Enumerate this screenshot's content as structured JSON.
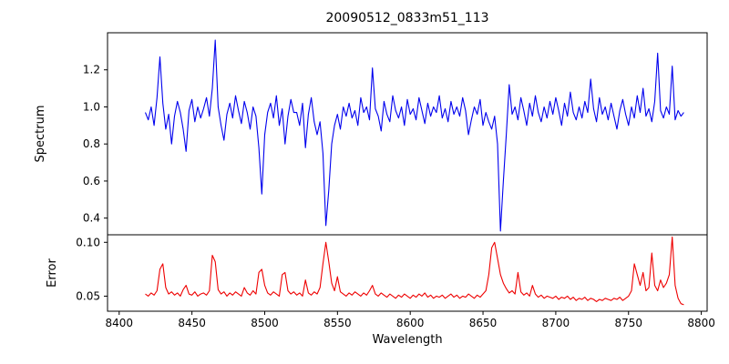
{
  "chart_data": {
    "type": "line",
    "title": "20090512_0833m51_113",
    "xlabel": "Wavelength",
    "xlim": [
      8392,
      8804
    ],
    "xticks": [
      8400,
      8450,
      8500,
      8550,
      8600,
      8650,
      8700,
      8750,
      8800
    ],
    "xtick_labels": [
      "8400",
      "8450",
      "8500",
      "8550",
      "8600",
      "8650",
      "8700",
      "8750",
      "8800"
    ],
    "x_start": 8418,
    "x_step": 2,
    "legend": "none",
    "grid": false,
    "panels": [
      {
        "name": "spectrum",
        "ylabel": "Spectrum",
        "ylim": [
          0.31,
          1.4
        ],
        "yticks": [
          0.4,
          0.6,
          0.8,
          1.0,
          1.2
        ],
        "ytick_labels": [
          "0.4",
          "0.6",
          "0.8",
          "1.0",
          "1.2"
        ],
        "color": "#0000ee",
        "values": [
          0.97,
          0.93,
          1.0,
          0.9,
          1.05,
          1.27,
          1.02,
          0.88,
          0.96,
          0.8,
          0.95,
          1.03,
          0.97,
          0.88,
          0.76,
          0.98,
          1.04,
          0.92,
          1.0,
          0.94,
          0.99,
          1.05,
          0.95,
          1.1,
          1.36,
          1.0,
          0.9,
          0.82,
          0.96,
          1.02,
          0.94,
          1.06,
          0.98,
          0.91,
          1.03,
          0.97,
          0.88,
          1.0,
          0.95,
          0.78,
          0.53,
          0.85,
          0.97,
          1.02,
          0.94,
          1.06,
          0.9,
          0.99,
          0.8,
          0.95,
          1.04,
          0.97,
          0.97,
          0.9,
          1.02,
          0.78,
          0.96,
          1.05,
          0.92,
          0.85,
          0.92,
          0.75,
          0.36,
          0.55,
          0.8,
          0.9,
          0.96,
          0.88,
          1.0,
          0.95,
          1.02,
          0.94,
          0.98,
          0.9,
          1.05,
          0.97,
          1.0,
          0.93,
          1.21,
          0.99,
          0.95,
          0.87,
          1.03,
          0.96,
          0.92,
          1.06,
          0.98,
          0.94,
          1.0,
          0.9,
          1.04,
          0.96,
          0.99,
          0.93,
          1.05,
          0.98,
          0.91,
          1.02,
          0.95,
          1.0,
          0.97,
          1.06,
          0.94,
          0.99,
          0.92,
          1.03,
          0.96,
          1.0,
          0.95,
          1.05,
          0.98,
          0.85,
          0.93,
          1.0,
          0.96,
          1.04,
          0.9,
          0.97,
          0.92,
          0.88,
          0.95,
          0.8,
          0.33,
          0.6,
          0.85,
          1.12,
          0.96,
          1.0,
          0.93,
          1.05,
          0.98,
          0.9,
          1.02,
          0.95,
          1.06,
          0.97,
          0.92,
          1.0,
          0.94,
          1.03,
          0.96,
          1.05,
          0.98,
          0.9,
          1.02,
          0.95,
          1.08,
          0.97,
          0.93,
          1.0,
          0.94,
          1.03,
          0.97,
          1.15,
          0.99,
          0.92,
          1.05,
          0.96,
          1.0,
          0.93,
          1.02,
          0.95,
          0.88,
          0.98,
          1.04,
          0.96,
          0.9,
          1.0,
          0.94,
          1.06,
          0.97,
          1.1,
          0.95,
          0.99,
          0.92,
          1.03,
          1.29,
          0.98,
          0.94,
          1.0,
          0.96,
          1.22,
          0.93,
          0.98,
          0.95,
          0.97
        ]
      },
      {
        "name": "error",
        "ylabel": "Error",
        "ylim": [
          0.036,
          0.107
        ],
        "yticks": [
          0.05,
          0.1
        ],
        "ytick_labels": [
          "0.05",
          "0.10"
        ],
        "color": "#ee0000",
        "values": [
          0.052,
          0.05,
          0.053,
          0.051,
          0.055,
          0.075,
          0.08,
          0.058,
          0.052,
          0.054,
          0.051,
          0.053,
          0.05,
          0.056,
          0.06,
          0.052,
          0.051,
          0.054,
          0.05,
          0.052,
          0.053,
          0.051,
          0.055,
          0.088,
          0.082,
          0.056,
          0.052,
          0.054,
          0.05,
          0.053,
          0.051,
          0.054,
          0.052,
          0.05,
          0.058,
          0.053,
          0.051,
          0.055,
          0.052,
          0.072,
          0.075,
          0.06,
          0.053,
          0.051,
          0.054,
          0.052,
          0.05,
          0.07,
          0.072,
          0.055,
          0.052,
          0.054,
          0.051,
          0.053,
          0.05,
          0.065,
          0.053,
          0.051,
          0.054,
          0.052,
          0.058,
          0.08,
          0.1,
          0.082,
          0.062,
          0.055,
          0.068,
          0.054,
          0.052,
          0.05,
          0.053,
          0.051,
          0.054,
          0.052,
          0.05,
          0.053,
          0.051,
          0.055,
          0.06,
          0.052,
          0.05,
          0.053,
          0.051,
          0.049,
          0.052,
          0.05,
          0.048,
          0.051,
          0.049,
          0.052,
          0.05,
          0.048,
          0.051,
          0.049,
          0.052,
          0.05,
          0.053,
          0.049,
          0.051,
          0.048,
          0.05,
          0.049,
          0.051,
          0.048,
          0.05,
          0.052,
          0.049,
          0.051,
          0.048,
          0.05,
          0.049,
          0.052,
          0.05,
          0.048,
          0.051,
          0.049,
          0.052,
          0.055,
          0.07,
          0.095,
          0.1,
          0.085,
          0.07,
          0.062,
          0.057,
          0.053,
          0.055,
          0.052,
          0.072,
          0.054,
          0.051,
          0.053,
          0.05,
          0.06,
          0.052,
          0.049,
          0.051,
          0.048,
          0.05,
          0.049,
          0.048,
          0.05,
          0.047,
          0.049,
          0.048,
          0.05,
          0.047,
          0.049,
          0.046,
          0.048,
          0.047,
          0.049,
          0.046,
          0.048,
          0.047,
          0.045,
          0.047,
          0.046,
          0.048,
          0.047,
          0.046,
          0.048,
          0.047,
          0.049,
          0.046,
          0.048,
          0.05,
          0.055,
          0.08,
          0.07,
          0.06,
          0.072,
          0.055,
          0.058,
          0.09,
          0.06,
          0.055,
          0.065,
          0.058,
          0.062,
          0.07,
          0.105,
          0.06,
          0.048,
          0.043,
          0.042
        ]
      }
    ]
  }
}
